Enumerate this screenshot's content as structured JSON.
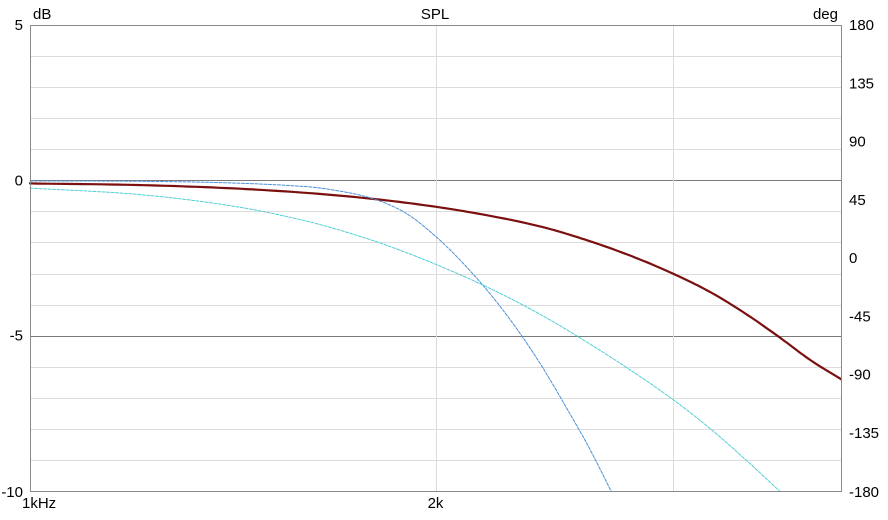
{
  "chart_data": {
    "type": "line",
    "title": "SPL",
    "y_left_unit": "dB",
    "y_right_unit": "deg",
    "x_scale": "log",
    "xlim": [
      1000,
      4000
    ],
    "ylim_left": [
      -10,
      5
    ],
    "ylim_right": [
      -180,
      180
    ],
    "x_tick_labels": [
      {
        "value": 1000,
        "label": "1kHz"
      },
      {
        "value": 2000,
        "label": "2k"
      }
    ],
    "x_gridlines": [
      1000,
      2000,
      3000,
      4000
    ],
    "y_left_ticks": [
      {
        "value": 5,
        "label": "5"
      },
      {
        "value": 0,
        "label": "0"
      },
      {
        "value": -5,
        "label": "-5"
      },
      {
        "value": -10,
        "label": "-10"
      }
    ],
    "y_left_gridlines": [
      5,
      4,
      3,
      2,
      1,
      0,
      -1,
      -2,
      -3,
      -4,
      -5,
      -6,
      -7,
      -8,
      -9,
      -10
    ],
    "y_left_major_lines": [
      0,
      -5
    ],
    "y_right_ticks": [
      {
        "value": 180,
        "label": "180"
      },
      {
        "value": 135,
        "label": "135"
      },
      {
        "value": 90,
        "label": "90"
      },
      {
        "value": 45,
        "label": "45"
      },
      {
        "value": 0,
        "label": "0"
      },
      {
        "value": -45,
        "label": "-45"
      },
      {
        "value": -90,
        "label": "-90"
      },
      {
        "value": -135,
        "label": "-135"
      },
      {
        "value": -180,
        "label": "-180"
      }
    ],
    "grid": true,
    "series": [
      {
        "color": "#7b1010",
        "style": "solid",
        "x": [
          1000,
          1200,
          1400,
          1600,
          1800,
          2000,
          2200,
          2400,
          2600,
          2800,
          3000,
          3200,
          3400,
          3600,
          3800,
          4000
        ],
        "y": [
          -0.1,
          -0.15,
          -0.25,
          -0.4,
          -0.6,
          -0.85,
          -1.15,
          -1.5,
          -1.95,
          -2.45,
          -3.0,
          -3.6,
          -4.3,
          -5.05,
          -5.8,
          -6.4
        ]
      },
      {
        "color": "#4a8fd8",
        "style": "dashed",
        "x": [
          1000,
          1200,
          1400,
          1600,
          1700,
          1800,
          1900,
          2000,
          2100,
          2200,
          2300,
          2400,
          2500,
          2600,
          2700
        ],
        "y": [
          -0.02,
          -0.03,
          -0.08,
          -0.2,
          -0.35,
          -0.6,
          -1.05,
          -1.8,
          -2.7,
          -3.7,
          -4.8,
          -6.0,
          -7.3,
          -8.6,
          -10.0
        ]
      },
      {
        "color": "#52cfd6",
        "style": "dashed",
        "x": [
          1000,
          1200,
          1400,
          1600,
          1800,
          2000,
          2200,
          2400,
          2600,
          2800,
          3000,
          3200,
          3400,
          3600
        ],
        "y": [
          -0.25,
          -0.45,
          -0.8,
          -1.3,
          -1.95,
          -2.7,
          -3.5,
          -4.35,
          -5.25,
          -6.15,
          -7.05,
          -8.0,
          -9.0,
          -10.0
        ]
      }
    ]
  }
}
